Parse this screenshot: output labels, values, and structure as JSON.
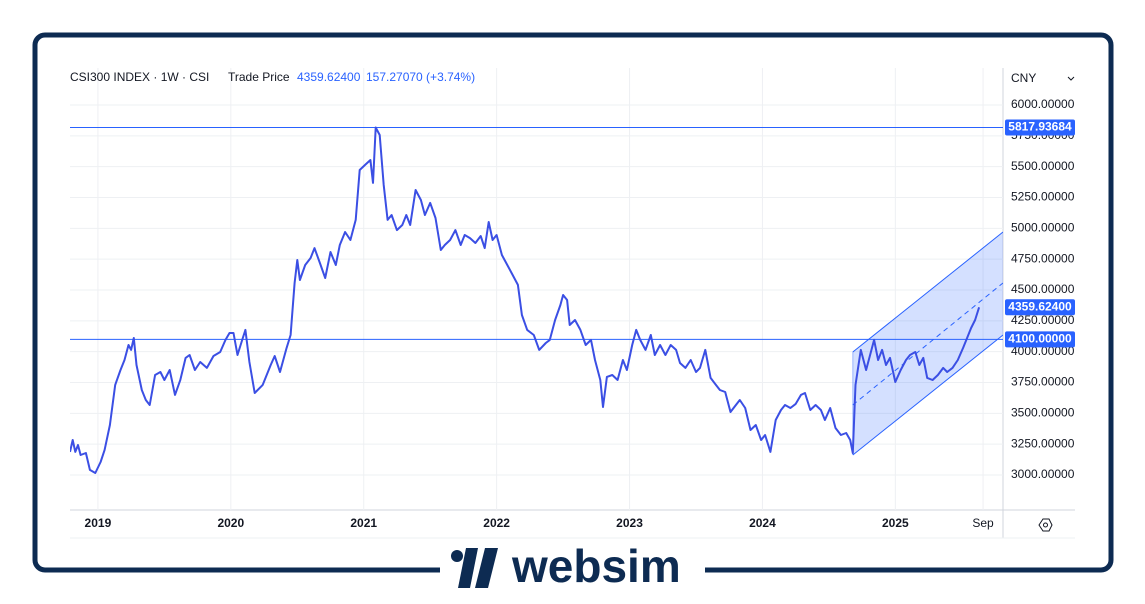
{
  "chart_data": {
    "type": "line",
    "title": "CSI300 INDEX · 1W · CSI",
    "price_type": "Trade Price",
    "change": "157.27070 (+3.74%)",
    "currency": "CNY",
    "last_price": {
      "value": 4359.624,
      "label": "4359.62400"
    },
    "color": "#3b4fe4",
    "xlim": [
      2018.79,
      2025.81
    ],
    "xticks": [
      2019,
      2020,
      2021,
      2022,
      2023,
      2024,
      2025,
      {
        "value": 2025.66,
        "label": "Sep"
      }
    ],
    "ylim": [
      2716,
      6300
    ],
    "yticks": [
      {
        "value": 3000,
        "label": "3000.00000"
      },
      {
        "value": 3250,
        "label": "3250.00000"
      },
      {
        "value": 3500,
        "label": "3500.00000"
      },
      {
        "value": 3750,
        "label": "3750.00000"
      },
      {
        "value": 4000,
        "label": "4000.00000"
      },
      {
        "value": 4250,
        "label": "4250.00000"
      },
      {
        "value": 4500,
        "label": "4500.00000"
      },
      {
        "value": 4750,
        "label": "4750.00000"
      },
      {
        "value": 5000,
        "label": "5000.00000"
      },
      {
        "value": 5250,
        "label": "5250.00000"
      },
      {
        "value": 5500,
        "label": "5500.00000"
      },
      {
        "value": 5750,
        "label": "5750.00000"
      },
      {
        "value": 6000,
        "label": "6000.00000"
      }
    ],
    "grid": true,
    "hlines": [
      {
        "value": 5817.93684,
        "label": "5817.93684"
      },
      {
        "value": 4100,
        "label": "4100.00000"
      }
    ],
    "channel": {
      "color": "#2962ff",
      "x": [
        2024.68,
        2025.81
      ],
      "upper": [
        3997,
        4970
      ],
      "middle": [
        3568,
        4557
      ],
      "lower": [
        3162,
        4135
      ]
    },
    "x": [
      2018.79,
      2018.81,
      2018.83,
      2018.85,
      2018.87,
      2018.91,
      2018.94,
      2018.98,
      2019.02,
      2019.05,
      2019.09,
      2019.13,
      2019.17,
      2019.2,
      2019.23,
      2019.25,
      2019.27,
      2019.29,
      2019.33,
      2019.36,
      2019.39,
      2019.43,
      2019.47,
      2019.5,
      2019.54,
      2019.58,
      2019.62,
      2019.66,
      2019.69,
      2019.73,
      2019.77,
      2019.82,
      2019.87,
      2019.92,
      2019.96,
      2019.99,
      2020.02,
      2020.05,
      2020.09,
      2020.11,
      2020.14,
      2020.18,
      2020.24,
      2020.3,
      2020.33,
      2020.37,
      2020.42,
      2020.45,
      2020.48,
      2020.5,
      2020.52,
      2020.56,
      2020.6,
      2020.63,
      2020.67,
      2020.71,
      2020.75,
      2020.79,
      2020.82,
      2020.86,
      2020.9,
      2020.94,
      2020.97,
      2021.01,
      2021.05,
      2021.07,
      2021.09,
      2021.12,
      2021.15,
      2021.18,
      2021.21,
      2021.25,
      2021.29,
      2021.32,
      2021.35,
      2021.39,
      2021.43,
      2021.46,
      2021.5,
      2021.54,
      2021.58,
      2021.61,
      2021.65,
      2021.69,
      2021.73,
      2021.76,
      2021.8,
      2021.84,
      2021.88,
      2021.91,
      2021.94,
      2021.97,
      2022.0,
      2022.04,
      2022.08,
      2022.12,
      2022.16,
      2022.19,
      2022.23,
      2022.28,
      2022.32,
      2022.37,
      2022.4,
      2022.44,
      2022.48,
      2022.5,
      2022.53,
      2022.55,
      2022.59,
      2022.63,
      2022.67,
      2022.71,
      2022.74,
      2022.78,
      2022.8,
      2022.83,
      2022.87,
      2022.91,
      2022.95,
      2022.98,
      2023.02,
      2023.05,
      2023.08,
      2023.12,
      2023.16,
      2023.19,
      2023.23,
      2023.27,
      2023.31,
      2023.35,
      2023.38,
      2023.42,
      2023.46,
      2023.5,
      2023.53,
      2023.57,
      2023.61,
      2023.65,
      2023.68,
      2023.72,
      2023.76,
      2023.8,
      2023.83,
      2023.87,
      2023.91,
      2023.95,
      2023.99,
      2024.02,
      2024.06,
      2024.1,
      2024.14,
      2024.17,
      2024.21,
      2024.25,
      2024.29,
      2024.32,
      2024.36,
      2024.4,
      2024.44,
      2024.47,
      2024.51,
      2024.55,
      2024.59,
      2024.63,
      2024.66,
      2024.68,
      2024.7,
      2024.74,
      2024.78,
      2024.81,
      2024.84,
      2024.87,
      2024.9,
      2024.93,
      2024.96,
      2025.0,
      2025.04,
      2025.08,
      2025.11,
      2025.15,
      2025.18,
      2025.21,
      2025.24,
      2025.28,
      2025.32,
      2025.36,
      2025.39,
      2025.43,
      2025.47,
      2025.51,
      2025.54,
      2025.57,
      2025.6,
      2025.63
    ],
    "values": [
      3187,
      3284,
      3187,
      3243,
      3162,
      3178,
      3041,
      3016,
      3105,
      3203,
      3405,
      3730,
      3851,
      3932,
      4054,
      4014,
      4111,
      3892,
      3689,
      3608,
      3567,
      3811,
      3835,
      3770,
      3851,
      3649,
      3770,
      3949,
      3973,
      3851,
      3916,
      3868,
      3965,
      3997,
      4095,
      4151,
      4151,
      3973,
      4111,
      4176,
      3916,
      3665,
      3730,
      3892,
      3965,
      3835,
      4030,
      4135,
      4557,
      4743,
      4581,
      4703,
      4759,
      4840,
      4719,
      4597,
      4808,
      4703,
      4865,
      4970,
      4905,
      5068,
      5473,
      5514,
      5554,
      5368,
      5817.94,
      5757,
      5351,
      5068,
      5108,
      4986,
      5027,
      5108,
      5027,
      5311,
      5230,
      5108,
      5206,
      5084,
      4824,
      4865,
      4905,
      4986,
      4865,
      4946,
      4921,
      4881,
      4938,
      4840,
      5051,
      4905,
      4946,
      4784,
      4703,
      4622,
      4541,
      4297,
      4176,
      4135,
      4014,
      4070,
      4095,
      4257,
      4378,
      4459,
      4419,
      4216,
      4257,
      4176,
      4054,
      4095,
      3932,
      3770,
      3551,
      3795,
      3811,
      3770,
      3932,
      3851,
      4054,
      4176,
      4095,
      4014,
      4135,
      3973,
      4054,
      3973,
      4054,
      4014,
      3908,
      3868,
      3932,
      3835,
      3868,
      4014,
      3787,
      3730,
      3689,
      3673,
      3511,
      3567,
      3608,
      3543,
      3365,
      3405,
      3284,
      3324,
      3187,
      3446,
      3527,
      3567,
      3543,
      3576,
      3649,
      3665,
      3527,
      3567,
      3527,
      3446,
      3543,
      3381,
      3324,
      3340,
      3284,
      3178,
      3730,
      4014,
      3851,
      3973,
      4095,
      3932,
      4014,
      3892,
      3949,
      3754,
      3851,
      3932,
      3973,
      3997,
      3892,
      3949,
      3787,
      3770,
      3811,
      3868,
      3835,
      3868,
      3932,
      4030,
      4111,
      4192,
      4257,
      4359.624
    ]
  },
  "brand": "websim"
}
